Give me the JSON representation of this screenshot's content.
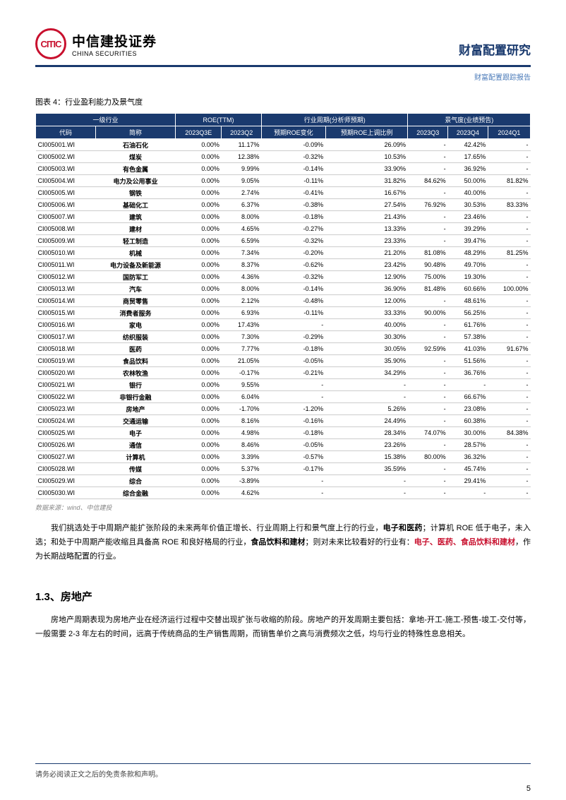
{
  "header": {
    "logo_inner": "CITIC",
    "logo_cn": "中信建投证券",
    "logo_en": "CHINA SECURITIES",
    "title": "财富配置研究",
    "subtitle": "财富配置跟踪报告"
  },
  "chart": {
    "title": "图表 4：行业盈利能力及景气度",
    "source": "数据来源：wind、中信建投",
    "group_headers": {
      "g1": "一级行业",
      "g2": "ROE(TTM)",
      "g3": "行业周期(分析师预期)",
      "g4": "景气度(业绩预告)"
    },
    "col_headers": {
      "c1": "代码",
      "c2": "简称",
      "c3": "2023Q3E",
      "c4": "2023Q2",
      "c5": "预期ROE变化",
      "c6": "预期ROE上调比例",
      "c7": "2023Q3",
      "c8": "2023Q4",
      "c9": "2024Q1"
    },
    "rows": [
      [
        "CI005001.WI",
        "石油石化",
        "0.00%",
        "11.17%",
        "-0.09%",
        "26.09%",
        "-",
        "42.42%",
        "-"
      ],
      [
        "CI005002.WI",
        "煤炭",
        "0.00%",
        "12.38%",
        "-0.32%",
        "10.53%",
        "-",
        "17.65%",
        "-"
      ],
      [
        "CI005003.WI",
        "有色金属",
        "0.00%",
        "9.99%",
        "-0.14%",
        "33.90%",
        "-",
        "36.92%",
        "-"
      ],
      [
        "CI005004.WI",
        "电力及公用事业",
        "0.00%",
        "9.05%",
        "-0.11%",
        "31.82%",
        "84.62%",
        "50.00%",
        "81.82%"
      ],
      [
        "CI005005.WI",
        "钢铁",
        "0.00%",
        "2.74%",
        "-0.41%",
        "16.67%",
        "-",
        "40.00%",
        "-"
      ],
      [
        "CI005006.WI",
        "基础化工",
        "0.00%",
        "6.37%",
        "-0.38%",
        "27.54%",
        "76.92%",
        "30.53%",
        "83.33%"
      ],
      [
        "CI005007.WI",
        "建筑",
        "0.00%",
        "8.00%",
        "-0.18%",
        "21.43%",
        "-",
        "23.46%",
        "-"
      ],
      [
        "CI005008.WI",
        "建材",
        "0.00%",
        "4.65%",
        "-0.27%",
        "13.33%",
        "-",
        "39.29%",
        "-"
      ],
      [
        "CI005009.WI",
        "轻工制造",
        "0.00%",
        "6.59%",
        "-0.32%",
        "23.33%",
        "-",
        "39.47%",
        "-"
      ],
      [
        "CI005010.WI",
        "机械",
        "0.00%",
        "7.34%",
        "-0.20%",
        "21.20%",
        "81.08%",
        "48.29%",
        "81.25%"
      ],
      [
        "CI005011.WI",
        "电力设备及新能源",
        "0.00%",
        "8.37%",
        "-0.62%",
        "23.42%",
        "90.48%",
        "49.70%",
        "-"
      ],
      [
        "CI005012.WI",
        "国防军工",
        "0.00%",
        "4.36%",
        "-0.32%",
        "12.90%",
        "75.00%",
        "19.30%",
        "-"
      ],
      [
        "CI005013.WI",
        "汽车",
        "0.00%",
        "8.00%",
        "-0.14%",
        "36.90%",
        "81.48%",
        "60.66%",
        "100.00%"
      ],
      [
        "CI005014.WI",
        "商贸零售",
        "0.00%",
        "2.12%",
        "-0.48%",
        "12.00%",
        "-",
        "48.61%",
        "-"
      ],
      [
        "CI005015.WI",
        "消费者服务",
        "0.00%",
        "6.93%",
        "-0.11%",
        "33.33%",
        "90.00%",
        "56.25%",
        "-"
      ],
      [
        "CI005016.WI",
        "家电",
        "0.00%",
        "17.43%",
        "-",
        "40.00%",
        "-",
        "61.76%",
        "-"
      ],
      [
        "CI005017.WI",
        "纺织服装",
        "0.00%",
        "7.30%",
        "-0.29%",
        "30.30%",
        "-",
        "57.38%",
        "-"
      ],
      [
        "CI005018.WI",
        "医药",
        "0.00%",
        "7.77%",
        "-0.18%",
        "30.05%",
        "92.59%",
        "41.03%",
        "91.67%"
      ],
      [
        "CI005019.WI",
        "食品饮料",
        "0.00%",
        "21.05%",
        "-0.05%",
        "35.90%",
        "-",
        "51.56%",
        "-"
      ],
      [
        "CI005020.WI",
        "农林牧渔",
        "0.00%",
        "-0.17%",
        "-0.21%",
        "34.29%",
        "-",
        "36.76%",
        "-"
      ],
      [
        "CI005021.WI",
        "银行",
        "0.00%",
        "9.55%",
        "-",
        "-",
        "-",
        "-",
        "-"
      ],
      [
        "CI005022.WI",
        "非银行金融",
        "0.00%",
        "6.04%",
        "-",
        "-",
        "-",
        "66.67%",
        "-"
      ],
      [
        "CI005023.WI",
        "房地产",
        "0.00%",
        "-1.70%",
        "-1.20%",
        "5.26%",
        "-",
        "23.08%",
        "-"
      ],
      [
        "CI005024.WI",
        "交通运输",
        "0.00%",
        "8.16%",
        "-0.16%",
        "24.49%",
        "-",
        "60.38%",
        "-"
      ],
      [
        "CI005025.WI",
        "电子",
        "0.00%",
        "4.98%",
        "-0.18%",
        "28.34%",
        "74.07%",
        "30.00%",
        "84.38%"
      ],
      [
        "CI005026.WI",
        "通信",
        "0.00%",
        "8.46%",
        "-0.05%",
        "23.26%",
        "-",
        "28.57%",
        "-"
      ],
      [
        "CI005027.WI",
        "计算机",
        "0.00%",
        "3.39%",
        "-0.57%",
        "15.38%",
        "80.00%",
        "36.32%",
        "-"
      ],
      [
        "CI005028.WI",
        "传媒",
        "0.00%",
        "5.37%",
        "-0.17%",
        "35.59%",
        "-",
        "45.74%",
        "-"
      ],
      [
        "CI005029.WI",
        "综合",
        "0.00%",
        "-3.89%",
        "-",
        "-",
        "-",
        "29.41%",
        "-"
      ],
      [
        "CI005030.WI",
        "综合金融",
        "0.00%",
        "4.62%",
        "-",
        "-",
        "-",
        "-",
        "-"
      ]
    ]
  },
  "para1": {
    "t1": "我们挑选处于中周期产能扩张阶段的未来两年价值正增长、行业周期上行和景气度上行的行业，",
    "t2": "电子和医药",
    "t3": "；计算机 ROE 低于电子，未入选；和处于中周期产能收缩且具备高 ROE 和良好格局的行业，",
    "t4": "食品饮料和建材",
    "t5": "；则对未来比较看好的行业有：",
    "t6": "电子、医药、食品饮料和建材",
    "t7": "，作为长期战略配置的行业。"
  },
  "section": {
    "title": "1.3、房地产"
  },
  "para2": {
    "text": "房地产周期表现为房地产业在经济运行过程中交替出现扩张与收缩的阶段。房地产的开发周期主要包括：拿地-开工-施工-预售-竣工-交付等，一般需要 2-3 年左右的时间，远高于传统商品的生产销售周期，而销售单价之高与消费频次之低，均与行业的特殊性息息相关。"
  },
  "footer": {
    "disclaimer": "请务必阅读正文之后的免责条款和声明。",
    "page": "5"
  }
}
